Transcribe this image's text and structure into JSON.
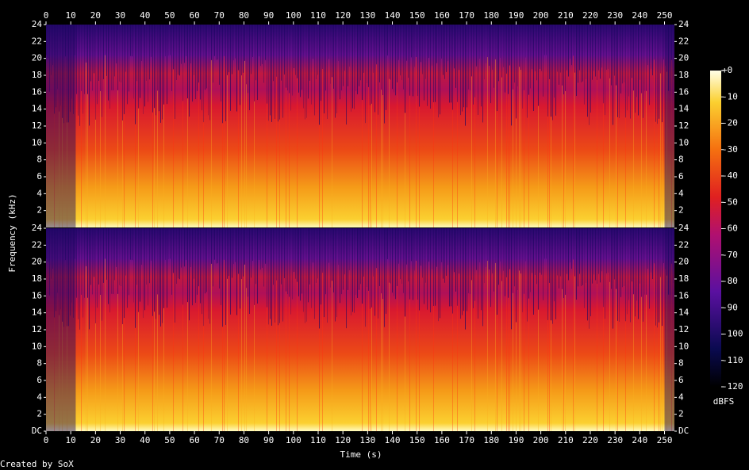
{
  "chart_data": {
    "type": "spectrogram",
    "x_label": "Time (s)",
    "y_label": "Frequency (kHz)",
    "xlim": [
      0,
      254
    ],
    "xticks": [
      0,
      10,
      20,
      30,
      40,
      50,
      60,
      70,
      80,
      90,
      100,
      110,
      120,
      130,
      140,
      150,
      160,
      170,
      180,
      190,
      200,
      210,
      220,
      230,
      240,
      250
    ],
    "channels": [
      {
        "ylim": [
          0,
          24
        ],
        "yticks": [
          2,
          4,
          6,
          8,
          10,
          12,
          14,
          16,
          18,
          20,
          22,
          24
        ]
      },
      {
        "ylim": [
          0,
          24
        ],
        "yticks": [
          {
            "value": 0,
            "label": "DC"
          },
          2,
          4,
          6,
          8,
          10,
          12,
          14,
          16,
          18,
          20,
          22,
          24
        ]
      }
    ],
    "colorbar": {
      "label": "dBFS",
      "lim": [
        -120,
        0
      ],
      "ticks": [
        {
          "value": 0,
          "label": "+0"
        },
        -10,
        -20,
        -30,
        -40,
        -50,
        -60,
        -70,
        -80,
        -90,
        -100,
        -110,
        -120
      ]
    },
    "footer": "Created by SoX"
  }
}
